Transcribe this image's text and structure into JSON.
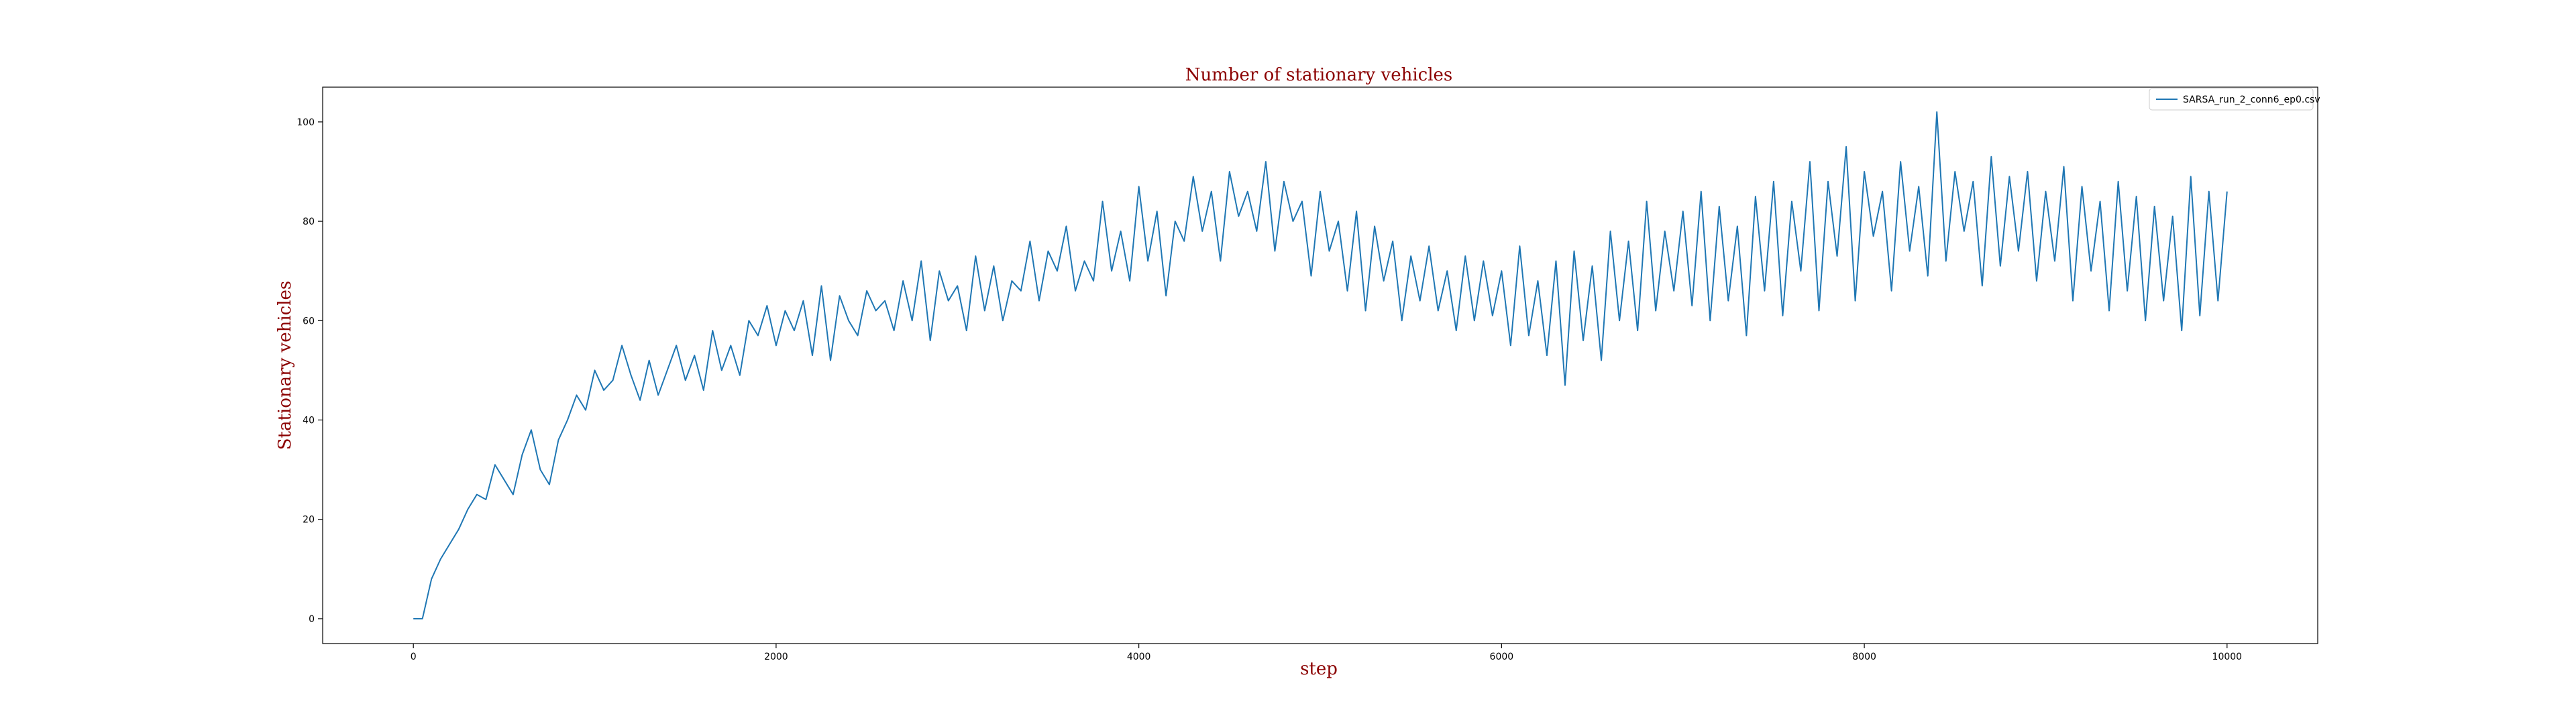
{
  "chart_data": {
    "type": "line",
    "title": "Number of stationary vehicles",
    "xlabel": "step",
    "ylabel": "Stationary vehicles",
    "xlim": [
      -500,
      10500
    ],
    "ylim": [
      -5,
      107
    ],
    "xticks": [
      0,
      2000,
      4000,
      6000,
      8000,
      10000
    ],
    "yticks": [
      0,
      20,
      40,
      60,
      80,
      100
    ],
    "grid": false,
    "legend_position": "top-right",
    "series": [
      {
        "name": "SARSA_run_2_conn6_ep0.csv",
        "color": "#1f77b4",
        "x": [
          0,
          50,
          100,
          150,
          200,
          250,
          300,
          350,
          400,
          450,
          500,
          550,
          600,
          650,
          700,
          750,
          800,
          850,
          900,
          950,
          1000,
          1050,
          1100,
          1150,
          1200,
          1250,
          1300,
          1350,
          1400,
          1450,
          1500,
          1550,
          1600,
          1650,
          1700,
          1750,
          1800,
          1850,
          1900,
          1950,
          2000,
          2050,
          2100,
          2150,
          2200,
          2250,
          2300,
          2350,
          2400,
          2450,
          2500,
          2550,
          2600,
          2650,
          2700,
          2750,
          2800,
          2850,
          2900,
          2950,
          3000,
          3050,
          3100,
          3150,
          3200,
          3250,
          3300,
          3350,
          3400,
          3450,
          3500,
          3550,
          3600,
          3650,
          3700,
          3750,
          3800,
          3850,
          3900,
          3950,
          4000,
          4050,
          4100,
          4150,
          4200,
          4250,
          4300,
          4350,
          4400,
          4450,
          4500,
          4550,
          4600,
          4650,
          4700,
          4750,
          4800,
          4850,
          4900,
          4950,
          5000,
          5050,
          5100,
          5150,
          5200,
          5250,
          5300,
          5350,
          5400,
          5450,
          5500,
          5550,
          5600,
          5650,
          5700,
          5750,
          5800,
          5850,
          5900,
          5950,
          6000,
          6050,
          6100,
          6150,
          6200,
          6250,
          6300,
          6350,
          6400,
          6450,
          6500,
          6550,
          6600,
          6650,
          6700,
          6750,
          6800,
          6850,
          6900,
          6950,
          7000,
          7050,
          7100,
          7150,
          7200,
          7250,
          7300,
          7350,
          7400,
          7450,
          7500,
          7550,
          7600,
          7650,
          7700,
          7750,
          7800,
          7850,
          7900,
          7950,
          8000,
          8050,
          8100,
          8150,
          8200,
          8250,
          8300,
          8350,
          8400,
          8450,
          8500,
          8550,
          8600,
          8650,
          8700,
          8750,
          8800,
          8850,
          8900,
          8950,
          9000,
          9050,
          9100,
          9150,
          9200,
          9250,
          9300,
          9350,
          9400,
          9450,
          9500,
          9550,
          9600,
          9650,
          9700,
          9750,
          9800,
          9850,
          9900,
          9950,
          10000
        ],
        "y": [
          0,
          0,
          8,
          12,
          15,
          18,
          22,
          25,
          24,
          31,
          28,
          25,
          33,
          38,
          30,
          27,
          36,
          40,
          45,
          42,
          50,
          46,
          48,
          55,
          49,
          44,
          52,
          45,
          50,
          55,
          48,
          53,
          46,
          58,
          50,
          55,
          49,
          60,
          57,
          63,
          55,
          62,
          58,
          64,
          53,
          67,
          52,
          65,
          60,
          57,
          66,
          62,
          64,
          58,
          68,
          60,
          72,
          56,
          70,
          64,
          67,
          58,
          73,
          62,
          71,
          60,
          68,
          66,
          76,
          64,
          74,
          70,
          79,
          66,
          72,
          68,
          84,
          70,
          78,
          68,
          87,
          72,
          82,
          65,
          80,
          76,
          89,
          78,
          86,
          72,
          90,
          81,
          86,
          78,
          92,
          74,
          88,
          80,
          84,
          69,
          86,
          74,
          80,
          66,
          82,
          62,
          79,
          68,
          76,
          60,
          73,
          64,
          75,
          62,
          70,
          58,
          73,
          60,
          72,
          61,
          70,
          55,
          75,
          57,
          68,
          53,
          72,
          47,
          74,
          56,
          71,
          52,
          78,
          60,
          76,
          58,
          84,
          62,
          78,
          66,
          82,
          63,
          86,
          60,
          83,
          64,
          79,
          57,
          85,
          66,
          88,
          61,
          84,
          70,
          92,
          62,
          88,
          73,
          95,
          64,
          90,
          77,
          86,
          66,
          92,
          74,
          87,
          69,
          102,
          72,
          90,
          78,
          88,
          67,
          93,
          71,
          89,
          74,
          90,
          68,
          86,
          72,
          91,
          64,
          87,
          70,
          84,
          62,
          88,
          66,
          85,
          60,
          83,
          64,
          81,
          58,
          89,
          61,
          86,
          64,
          86
        ]
      }
    ]
  }
}
